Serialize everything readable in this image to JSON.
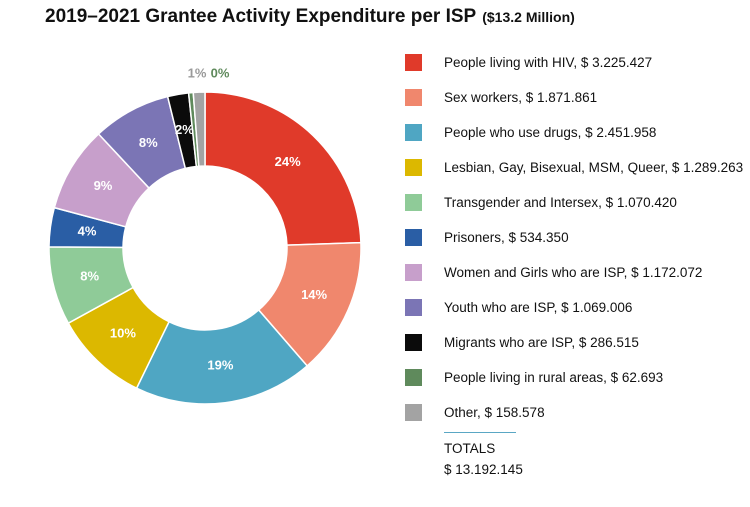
{
  "title": "2019–2021 Grantee Activity Expenditure per ISP",
  "subtitle": "($13.2 Million)",
  "chart_data": {
    "type": "pie",
    "title": "2019–2021 Grantee Activity Expenditure per ISP",
    "subtitle": "($13.2 Million)",
    "series": [
      {
        "name": "People living with HIV",
        "value": 3225427,
        "value_label": "$ 3.225.427",
        "percent_label": "24%",
        "color": "#e03a2a"
      },
      {
        "name": "Sex workers",
        "value": 1871861,
        "value_label": "$ 1.871.861",
        "percent_label": "14%",
        "color": "#f0876d"
      },
      {
        "name": "People who use drugs",
        "value": 2451958,
        "value_label": "$ 2.451.958",
        "percent_label": "19%",
        "color": "#4fa6c3"
      },
      {
        "name": "Lesbian, Gay, Bisexual, MSM, Queer",
        "value": 1289263,
        "value_label": "$ 1.289.263",
        "percent_label": "10%",
        "color": "#dcb800"
      },
      {
        "name": "Transgender and Intersex",
        "value": 1070420,
        "value_label": "$ 1.070.420",
        "percent_label": "8%",
        "color": "#8fcb98"
      },
      {
        "name": "Prisoners",
        "value": 534350,
        "value_label": "$ 534.350",
        "percent_label": "4%",
        "color": "#2a5ea5"
      },
      {
        "name": "Women and Girls who are ISP",
        "value": 1172072,
        "value_label": "$ 1.172.072",
        "percent_label": "9%",
        "color": "#c79fcb"
      },
      {
        "name": "Youth who are ISP",
        "value": 1069006,
        "value_label": "$ 1.069.006",
        "percent_label": "8%",
        "color": "#7b75b5"
      },
      {
        "name": "Migrants who are ISP",
        "value": 286515,
        "value_label": "$ 286.515",
        "percent_label": "2%",
        "color": "#0b0b0b"
      },
      {
        "name": "People living in rural areas",
        "value": 62693,
        "value_label": "$ 62.693",
        "percent_label": "0%",
        "color": "#5f8a5c"
      },
      {
        "name": "Other",
        "value": 158578,
        "value_label": "$ 158.578",
        "percent_label": "1%",
        "color": "#a3a3a3"
      }
    ],
    "legend_position": "right",
    "totals_label": "TOTALS",
    "totals_value": "$ 13.192.145"
  }
}
